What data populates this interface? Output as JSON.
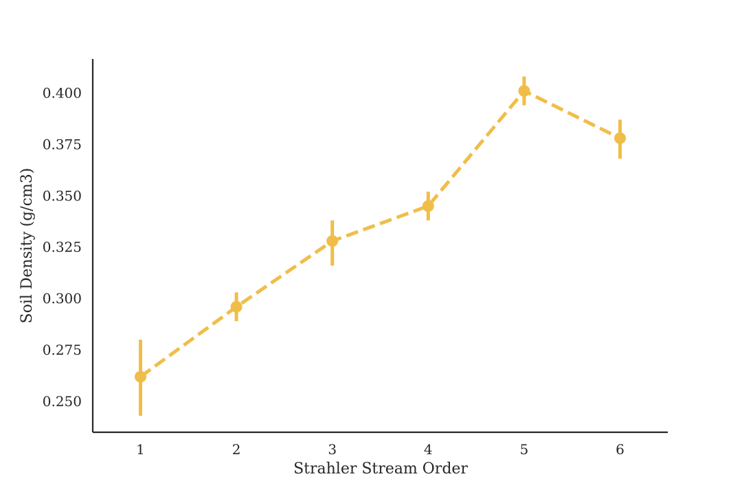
{
  "chart_data": {
    "type": "line",
    "title": "",
    "xlabel": "Strahler Stream Order",
    "ylabel": "Soil Density (g/cm3)",
    "categories": [
      "1",
      "2",
      "3",
      "4",
      "5",
      "6"
    ],
    "series": [
      {
        "name": "Soil Density",
        "color": "#F0BE48",
        "line_style": "dashed",
        "values": [
          0.262,
          0.296,
          0.328,
          0.345,
          0.401,
          0.378
        ],
        "ci_low": [
          0.243,
          0.289,
          0.316,
          0.338,
          0.394,
          0.368
        ],
        "ci_high": [
          0.28,
          0.303,
          0.338,
          0.352,
          0.408,
          0.387
        ]
      }
    ],
    "yticks": [
      "0.250",
      "0.275",
      "0.300",
      "0.325",
      "0.350",
      "0.375",
      "0.400"
    ],
    "ylim": [
      0.235,
      0.4165
    ],
    "grid": false,
    "legend": "none"
  }
}
